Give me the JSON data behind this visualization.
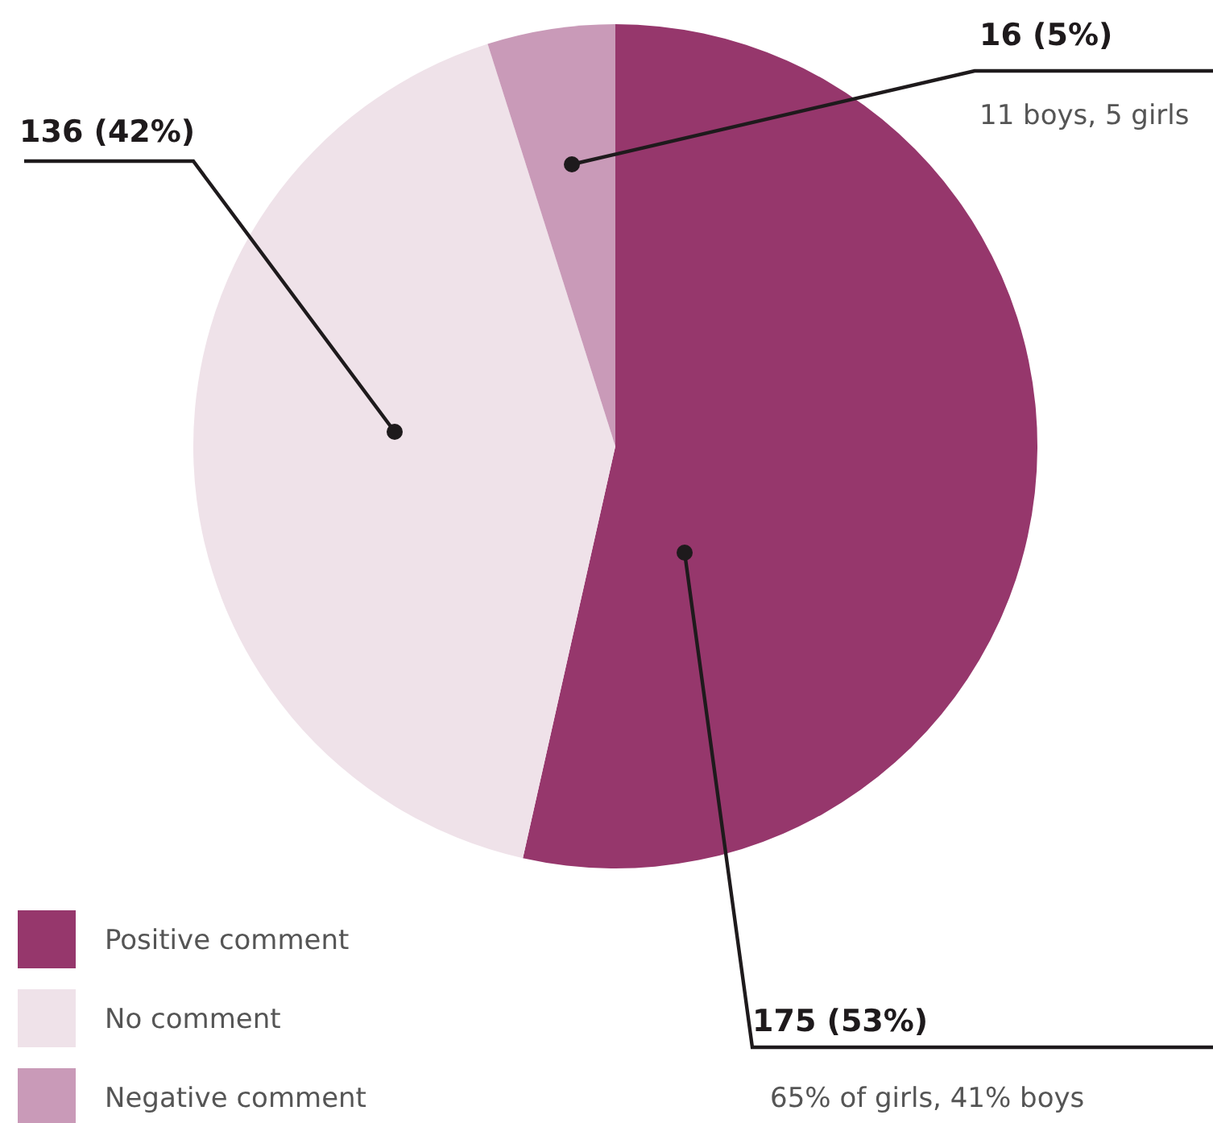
{
  "chart_data": {
    "type": "pie",
    "categories": [
      "Positive comment",
      "No comment",
      "Negative comment"
    ],
    "values": [
      175,
      136,
      16
    ],
    "colors": [
      "#96376c",
      "#efe2e9",
      "#c99ab8"
    ],
    "value_labels": [
      "175 (53%)",
      "136 (42%)",
      "16 (5%)"
    ],
    "annotations": [
      {
        "text": "65% of girls, 41% boys",
        "x": "Positive comment"
      },
      {
        "text": "11 boys, 5 girls",
        "x": "Negative comment"
      }
    ],
    "legend": "bottom left"
  }
}
